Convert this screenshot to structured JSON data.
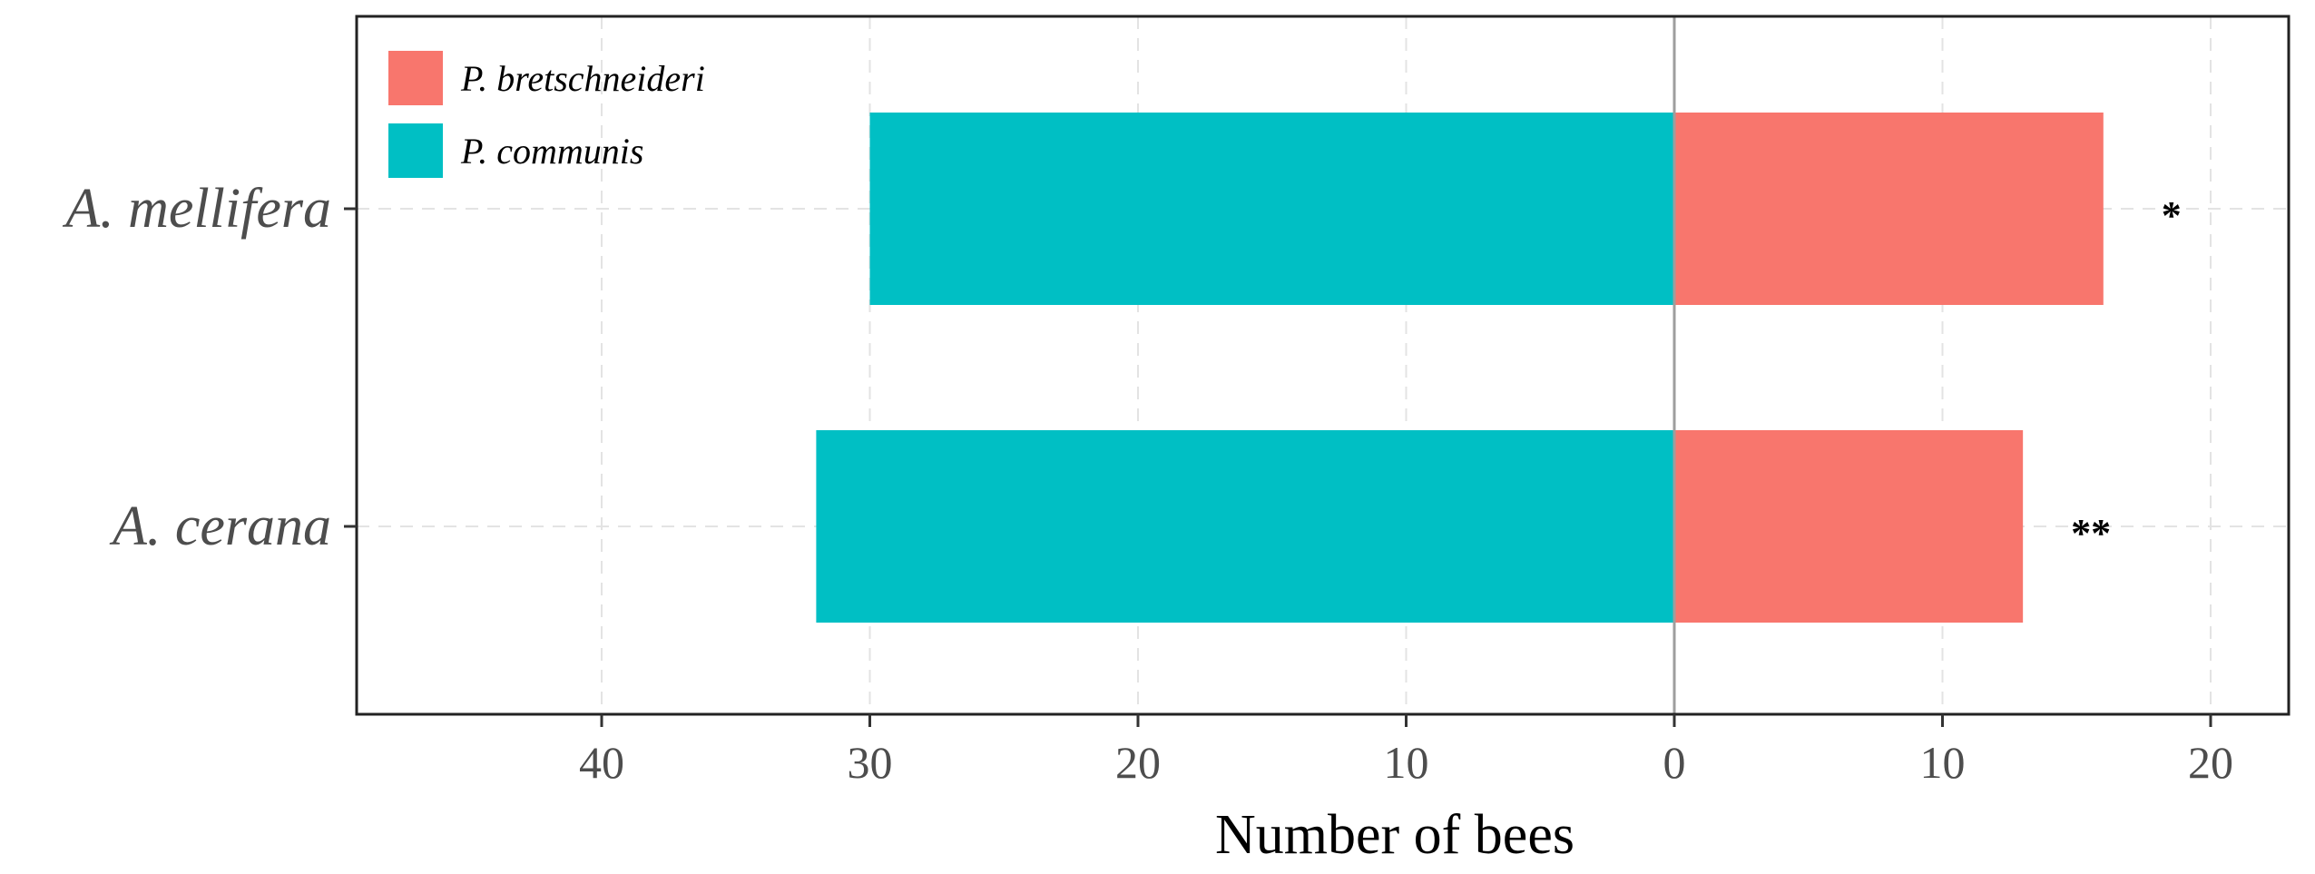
{
  "chart_data": {
    "type": "bar",
    "orientation": "horizontal",
    "layout": "diverging",
    "categories": [
      "A. mellifera",
      "A. cerana"
    ],
    "series": [
      {
        "name": "P. bretschneideri",
        "values": [
          16,
          13
        ],
        "color": "#F8766D",
        "direction": "right"
      },
      {
        "name": "P. communis",
        "values": [
          30,
          32
        ],
        "color": "#00BFC4",
        "direction": "left"
      }
    ],
    "annotations": [
      "*",
      "**"
    ],
    "xlabel": "Number of bees",
    "ylabel": "",
    "xlim_left": 40,
    "xlim_right": 20,
    "xticks_left": [
      "40",
      "30",
      "20",
      "10"
    ],
    "xticks_right": [
      "0",
      "10",
      "20"
    ],
    "grid": true,
    "legend_position": "top-left"
  }
}
